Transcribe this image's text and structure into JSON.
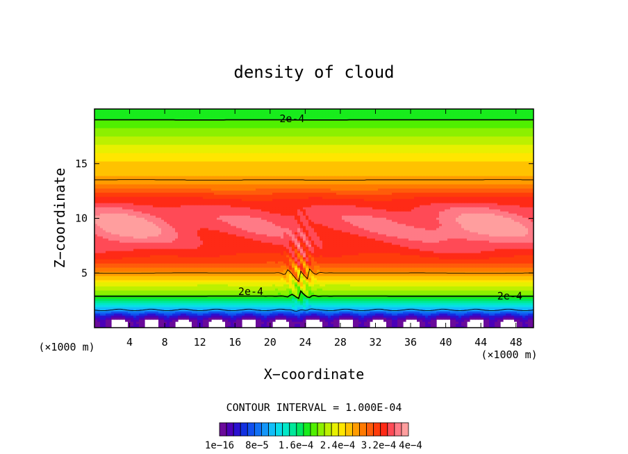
{
  "chart_data": {
    "type": "heatmap",
    "title": "density of cloud",
    "xlabel": "X−coordinate",
    "ylabel": "Z−coordinate",
    "x_unit_left": "(×1000 m)",
    "x_unit_right": "(×1000 m)",
    "xlim": [
      0,
      50
    ],
    "ylim": [
      0,
      20
    ],
    "x_ticks": [
      4,
      8,
      12,
      16,
      20,
      24,
      28,
      32,
      36,
      40,
      44,
      48
    ],
    "y_ticks": [
      5,
      10,
      15
    ],
    "contour_interval_label": "CONTOUR INTERVAL = 1.000E-04",
    "contour_levels": [
      0.0001,
      0.0002,
      0.0003,
      0.0004
    ],
    "contour_labels": [
      {
        "text": "2e-4",
        "x": 22.5,
        "z": 19.1
      },
      {
        "text": "2e-4",
        "x": 17.8,
        "z": 3.3
      },
      {
        "text": "2e-4",
        "x": 47.3,
        "z": 2.9
      }
    ],
    "colorbar": {
      "colors": [
        "#6a0a9a",
        "#4b00b8",
        "#2a10d0",
        "#1230e0",
        "#1050ee",
        "#1070f5",
        "#1496f8",
        "#12bef8",
        "#08dcea",
        "#00e8c8",
        "#00e89a",
        "#00e860",
        "#18ec1c",
        "#50f000",
        "#8cf000",
        "#bcf000",
        "#e8f000",
        "#ffe600",
        "#ffc200",
        "#ff9c00",
        "#ff7a00",
        "#ff5c0a",
        "#ff3c0a",
        "#ff2a16",
        "#ff4a56",
        "#ff7a86",
        "#ff9e9e"
      ],
      "labels": [
        "1e−16",
        "8e−5",
        "1.6e−4",
        "2.4e−4",
        "3.2e−4",
        "4e−4"
      ]
    },
    "vertical_profile": {
      "z": [
        0.0,
        0.6,
        1.0,
        1.3,
        1.6,
        2.0,
        2.5,
        3.0,
        3.5,
        4.0,
        4.5,
        5.0,
        5.5,
        6.0,
        7.0,
        8.0,
        9.0,
        10.0,
        11.0,
        12.0,
        12.5,
        13.0,
        13.5,
        14.0,
        15.0,
        16.0,
        17.0,
        18.0,
        19.0,
        20.0
      ],
      "density": [
        0.0,
        0.0,
        3e-05,
        6e-05,
        0.0001,
        0.00013,
        0.00017,
        0.00021,
        0.00023,
        0.00025,
        0.00028,
        0.0003,
        0.00032,
        0.00034,
        0.00036,
        0.00037,
        0.00038,
        0.00038,
        0.00037,
        0.00035,
        0.00033,
        0.00031,
        0.0003,
        0.00029,
        0.00028,
        0.00026,
        0.00024,
        0.00022,
        0.0002,
        0.00019
      ]
    }
  }
}
